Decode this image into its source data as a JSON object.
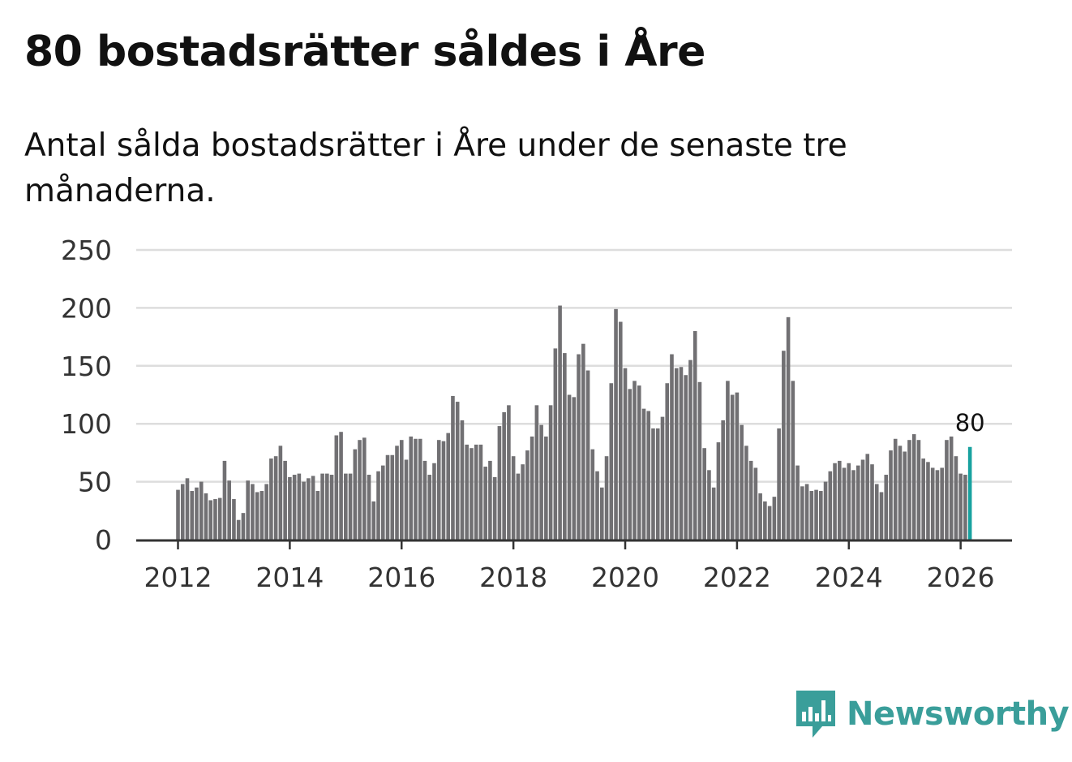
{
  "title": "80 bostadsrätter såldes i Åre",
  "subtitle": "Antal sålda bostadsrätter i Åre under de senaste tre månaderna.",
  "brand": {
    "name": "Newsworthy",
    "color": "#3a9e9a",
    "icon": "newsworthy-logo-icon"
  },
  "colors": {
    "bar": "#717073",
    "highlight": "#19a2a0",
    "grid": "#dddddd",
    "axis": "#333333"
  },
  "chart_data": {
    "type": "bar",
    "title": "80 bostadsrätter såldes i Åre",
    "xlabel": "",
    "ylabel": "",
    "ylim": [
      0,
      250
    ],
    "y_ticks": [
      "0",
      "50",
      "100",
      "150",
      "200",
      "250"
    ],
    "x_ticks": [
      "2012",
      "2014",
      "2016",
      "2018",
      "2020",
      "2022",
      "2024",
      "2026"
    ],
    "x_start": "2012-01",
    "period": "month",
    "grid": true,
    "values": [
      43,
      48,
      53,
      42,
      45,
      50,
      40,
      34,
      35,
      36,
      68,
      51,
      35,
      17,
      23,
      51,
      48,
      41,
      42,
      48,
      70,
      72,
      81,
      68,
      54,
      56,
      57,
      50,
      53,
      55,
      42,
      57,
      57,
      56,
      90,
      93,
      57,
      57,
      78,
      86,
      88,
      56,
      33,
      59,
      64,
      73,
      73,
      81,
      86,
      69,
      89,
      87,
      87,
      68,
      56,
      66,
      86,
      85,
      92,
      124,
      119,
      103,
      82,
      79,
      82,
      82,
      63,
      68,
      54,
      98,
      110,
      116,
      72,
      57,
      65,
      77,
      89,
      116,
      99,
      89,
      116,
      165,
      202,
      161,
      125,
      123,
      160,
      169,
      146,
      78,
      59,
      45,
      72,
      135,
      199,
      188,
      148,
      130,
      137,
      133,
      113,
      111,
      96,
      96,
      106,
      135,
      160,
      148,
      149,
      142,
      155,
      180,
      136,
      79,
      60,
      45,
      84,
      103,
      137,
      125,
      127,
      99,
      81,
      68,
      62,
      40,
      33,
      29,
      37,
      96,
      163,
      192,
      137,
      64,
      46,
      48,
      42,
      43,
      42,
      50,
      59,
      66,
      68,
      62,
      66,
      60,
      64,
      69,
      74,
      65,
      48,
      41,
      56,
      77,
      87,
      81,
      76,
      86,
      91,
      86,
      70,
      67,
      62,
      60,
      62,
      86,
      89,
      72,
      57,
      56,
      80
    ],
    "highlight_last": true,
    "last_label": "80"
  }
}
